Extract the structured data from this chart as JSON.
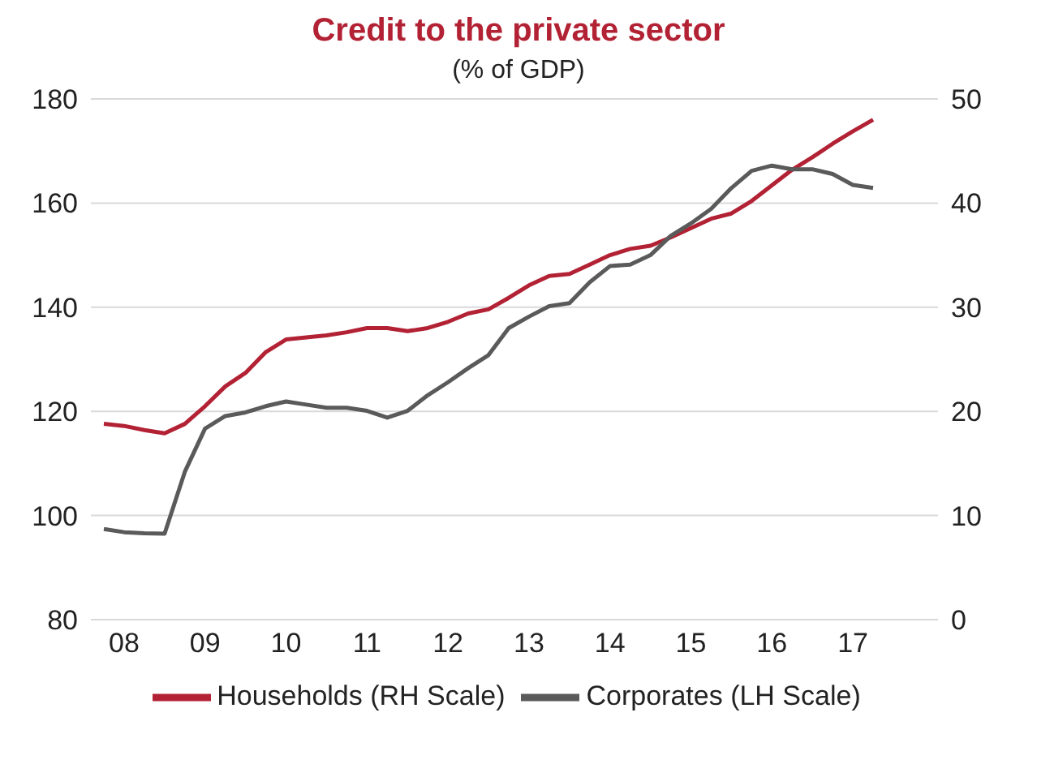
{
  "chart_data": {
    "type": "line",
    "title": "Credit to the private sector",
    "subtitle": "(% of GDP)",
    "categories": [
      null,
      "08",
      null,
      null,
      null,
      "09",
      null,
      null,
      null,
      "10",
      null,
      null,
      null,
      "11",
      null,
      null,
      null,
      "12",
      null,
      null,
      null,
      "13",
      null,
      null,
      null,
      "14",
      null,
      null,
      null,
      "15",
      null,
      null,
      null,
      "16",
      null,
      null,
      null,
      "17",
      null
    ],
    "ylim": [
      80,
      180
    ],
    "yticks": [
      80,
      100,
      120,
      140,
      160,
      180
    ],
    "y2lim": [
      0,
      50
    ],
    "y2ticks": [
      0,
      10,
      20,
      30,
      40,
      50
    ],
    "grid": "y",
    "legend": "bottom",
    "line_style": "solid",
    "marker": "none",
    "series": [
      {
        "name": "Households (RH Scale)",
        "color": "#b22234",
        "axis": "y2",
        "values": [
          18.8,
          18.6,
          18.2,
          17.9,
          18.8,
          20.5,
          22.4,
          23.7,
          25.7,
          26.9,
          27.1,
          27.3,
          27.6,
          28.0,
          28.0,
          27.7,
          28.0,
          28.6,
          29.4,
          29.8,
          30.9,
          32.1,
          33.0,
          33.2,
          34.1,
          35.0,
          35.6,
          35.9,
          36.7,
          37.6,
          38.5,
          39.0,
          40.2,
          41.7,
          43.2,
          44.4,
          45.7,
          46.9,
          48.0
        ]
      },
      {
        "name": "Corporates (LH Scale)",
        "color": "#5a5a5a",
        "values": [
          97.4,
          96.8,
          96.6,
          96.5,
          108.4,
          116.7,
          119.1,
          119.8,
          121.0,
          121.9,
          121.3,
          120.7,
          120.7,
          120.1,
          118.8,
          120.1,
          123.1,
          125.6,
          128.3,
          130.8,
          136.0,
          138.2,
          140.2,
          140.8,
          144.8,
          147.9,
          148.2,
          150.0,
          153.7,
          156.1,
          158.9,
          162.9,
          166.2,
          167.2,
          166.5,
          166.5,
          165.6,
          163.5,
          162.9
        ]
      }
    ]
  }
}
